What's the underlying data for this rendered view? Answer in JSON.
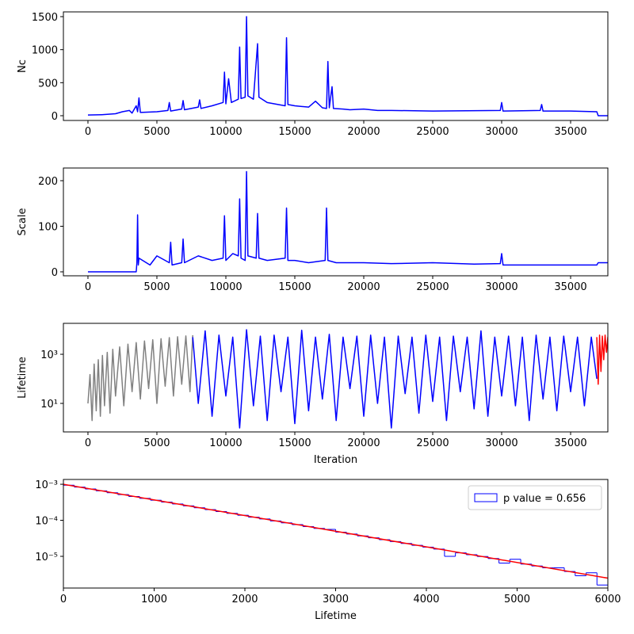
{
  "chart_data": [
    {
      "type": "line",
      "ylabel": "Nc",
      "x": [
        0,
        1000,
        2000,
        2500,
        3000,
        3200,
        3500,
        3600,
        3700,
        3800,
        5000,
        5800,
        5900,
        6000,
        6800,
        6900,
        7000,
        8000,
        8100,
        8200,
        9000,
        9800,
        9900,
        10000,
        10200,
        10400,
        10900,
        11000,
        11100,
        11400,
        11500,
        11600,
        12000,
        12300,
        12400,
        13000,
        14300,
        14400,
        14500,
        15000,
        16000,
        16500,
        17000,
        17300,
        17400,
        17500,
        17700,
        17800,
        18500,
        19000,
        20000,
        21000,
        22000,
        25000,
        29900,
        30000,
        30100,
        32800,
        32900,
        33000,
        35000,
        36900,
        37000,
        37900
      ],
      "series": [
        {
          "color": "#0000ff",
          "values": [
            10,
            15,
            30,
            60,
            80,
            40,
            150,
            60,
            270,
            50,
            60,
            80,
            200,
            70,
            100,
            230,
            90,
            130,
            240,
            110,
            150,
            200,
            660,
            180,
            560,
            200,
            250,
            1040,
            260,
            280,
            1500,
            300,
            250,
            1090,
            280,
            200,
            150,
            1180,
            170,
            150,
            130,
            220,
            120,
            110,
            820,
            120,
            440,
            110,
            100,
            90,
            100,
            80,
            80,
            70,
            80,
            200,
            70,
            80,
            170,
            70,
            70,
            60,
            0,
            0
          ]
        }
      ],
      "xlim": [
        -1780,
        37700
      ],
      "xticks": [
        0,
        5000,
        10000,
        15000,
        20000,
        25000,
        30000,
        35000
      ],
      "ylim": [
        -72,
        1572
      ],
      "yticks": [
        0,
        500,
        1000,
        1500
      ]
    },
    {
      "type": "line",
      "ylabel": "Scale",
      "x": [
        0,
        3500,
        3550,
        3600,
        3650,
        3700,
        4500,
        5000,
        5900,
        6000,
        6100,
        6800,
        6900,
        7000,
        8000,
        9000,
        9800,
        9900,
        10000,
        10500,
        10900,
        11000,
        11100,
        11400,
        11500,
        11600,
        12200,
        12300,
        12400,
        13000,
        14300,
        14400,
        14500,
        15000,
        16000,
        17200,
        17300,
        17400,
        18000,
        20000,
        22000,
        25000,
        28000,
        29900,
        30000,
        30100,
        33000,
        35000,
        36900,
        37000,
        37900
      ],
      "series": [
        {
          "color": "#0000ff",
          "values": [
            0,
            0,
            20,
            125,
            15,
            30,
            15,
            35,
            20,
            65,
            15,
            20,
            72,
            20,
            35,
            25,
            30,
            123,
            25,
            40,
            35,
            160,
            30,
            25,
            220,
            35,
            30,
            128,
            30,
            25,
            30,
            140,
            25,
            25,
            20,
            25,
            140,
            25,
            20,
            20,
            18,
            20,
            17,
            18,
            40,
            15,
            15,
            15,
            15,
            20,
            20
          ]
        }
      ],
      "xlim": [
        -1780,
        37700
      ],
      "xticks": [
        0,
        5000,
        10000,
        15000,
        20000,
        25000,
        30000,
        35000
      ],
      "ylim": [
        -8.7,
        227.8
      ],
      "yticks": [
        0,
        100,
        200
      ]
    },
    {
      "type": "line",
      "ylabel": "Lifetime",
      "xlabel": "Iteration",
      "ylog": true,
      "series": [
        {
          "color": "#808080",
          "x": [
            0,
            150,
            300,
            450,
            600,
            750,
            900,
            1050,
            1200,
            1400,
            1600,
            1800,
            2000,
            2300,
            2600,
            2900,
            3200,
            3500,
            3800,
            4100,
            4400,
            4700,
            5000,
            5300,
            5600,
            5900,
            6200,
            6500,
            6800,
            7100,
            7400,
            7600
          ],
          "values": [
            10,
            150,
            2,
            400,
            5,
            600,
            3,
            900,
            8,
            1200,
            4,
            1600,
            20,
            2000,
            8,
            2600,
            30,
            3000,
            15,
            3500,
            40,
            3900,
            10,
            4300,
            50,
            4800,
            20,
            5200,
            60,
            5600,
            30,
            6000
          ]
        },
        {
          "color": "#0000ff",
          "x": [
            7600,
            8000,
            8500,
            9000,
            9500,
            10000,
            10500,
            11000,
            11500,
            12000,
            12500,
            13000,
            13500,
            14000,
            14500,
            15000,
            15500,
            16000,
            16500,
            17000,
            17500,
            18000,
            18500,
            19000,
            19500,
            20000,
            20500,
            21000,
            21500,
            22000,
            22500,
            23000,
            23500,
            24000,
            24500,
            25000,
            25500,
            26000,
            26500,
            27000,
            27500,
            28000,
            28500,
            29000,
            29500,
            30000,
            30500,
            31000,
            31500,
            32000,
            32500,
            33000,
            33500,
            34000,
            34500,
            35000,
            35500,
            36000,
            36500,
            36900
          ],
          "values": [
            5000,
            10,
            9000,
            3,
            6000,
            20,
            5000,
            1,
            10000,
            8,
            5500,
            2,
            6000,
            30,
            5000,
            1.5,
            9500,
            5,
            5000,
            15,
            6500,
            2,
            5000,
            40,
            5500,
            3,
            6000,
            10,
            5000,
            1,
            5500,
            25,
            5000,
            4,
            6000,
            12,
            5000,
            2,
            5500,
            30,
            5000,
            6,
            9000,
            3,
            5000,
            20,
            5500,
            8,
            5000,
            2,
            6000,
            15,
            5000,
            5,
            5500,
            30,
            5000,
            8,
            5000,
            100
          ]
        },
        {
          "color": "#ff0000",
          "x": [
            36900,
            37000,
            37100,
            37200,
            37300,
            37400,
            37500,
            37600,
            37700,
            37800,
            37900
          ],
          "values": [
            5000,
            60,
            6000,
            200,
            5500,
            600,
            6000,
            1200,
            5000,
            2500,
            6000
          ]
        }
      ],
      "xlim": [
        -1780,
        37700
      ],
      "xticks": [
        0,
        5000,
        10000,
        15000,
        20000,
        25000,
        30000,
        35000
      ],
      "ylim": [
        0.69,
        18200
      ],
      "yticks": [
        {
          "value": 10,
          "label": "10¹"
        },
        {
          "value": 1000,
          "label": "10³"
        }
      ]
    },
    {
      "type": "histogram",
      "xlabel": "Lifetime",
      "ylog": true,
      "legend": "upper right",
      "bins": [
        0,
        120,
        240,
        360,
        480,
        600,
        720,
        840,
        960,
        1080,
        1200,
        1320,
        1440,
        1560,
        1680,
        1800,
        1920,
        2040,
        2160,
        2280,
        2400,
        2520,
        2640,
        2760,
        2880,
        3000,
        3120,
        3240,
        3360,
        3480,
        3600,
        3720,
        3840,
        3960,
        4080,
        4200,
        4320,
        4440,
        4560,
        4680,
        4800,
        4920,
        5040,
        5160,
        5280,
        5400,
        5520,
        5640,
        5760,
        5880,
        6000
      ],
      "series": [
        {
          "name": "p value = 0.656",
          "color": "#0000ff",
          "values": [
            0.000942,
            0.000835,
            0.000741,
            0.000657,
            0.000583,
            0.000517,
            0.000458,
            0.000407,
            0.000361,
            0.00032,
            0.000284,
            0.000252,
            0.000223,
            0.000198,
            0.000175,
            0.000156,
            0.000138,
            0.000122,
            0.000109,
            9.6e-05,
            8.5e-05,
            7.6e-05,
            6.7e-05,
            5.96e-05,
            5.6e-05,
            4.69e-05,
            4.16e-05,
            3.69e-05,
            3.27e-05,
            2.9e-05,
            2.57e-05,
            2.28e-05,
            2.02e-05,
            1.8e-05,
            1.59e-05,
            1e-05,
            1.25e-05,
            1.11e-05,
            9.9e-06,
            8.7e-06,
            6.5e-06,
            8.3e-06,
            6.1e-06,
            5.4e-06,
            4.8e-06,
            4.8e-06,
            3.8e-06,
            2.9e-06,
            3.5e-06,
            1.6e-06
          ]
        }
      ],
      "lines": [
        {
          "color": "#ff0000",
          "x": [
            0,
            6000
          ],
          "values": [
            0.001,
            2.48e-06
          ]
        }
      ],
      "xlim": [
        0,
        6000
      ],
      "xticks": [
        0,
        1000,
        2000,
        3000,
        4000,
        5000,
        6000
      ],
      "ylim": [
        1.32e-06,
        0.00136
      ],
      "yticks": [
        {
          "value": 1e-05,
          "label": "10⁻⁵"
        },
        {
          "value": 0.0001,
          "label": "10⁻⁴"
        },
        {
          "value": 0.001,
          "label": "10⁻³"
        }
      ]
    }
  ]
}
